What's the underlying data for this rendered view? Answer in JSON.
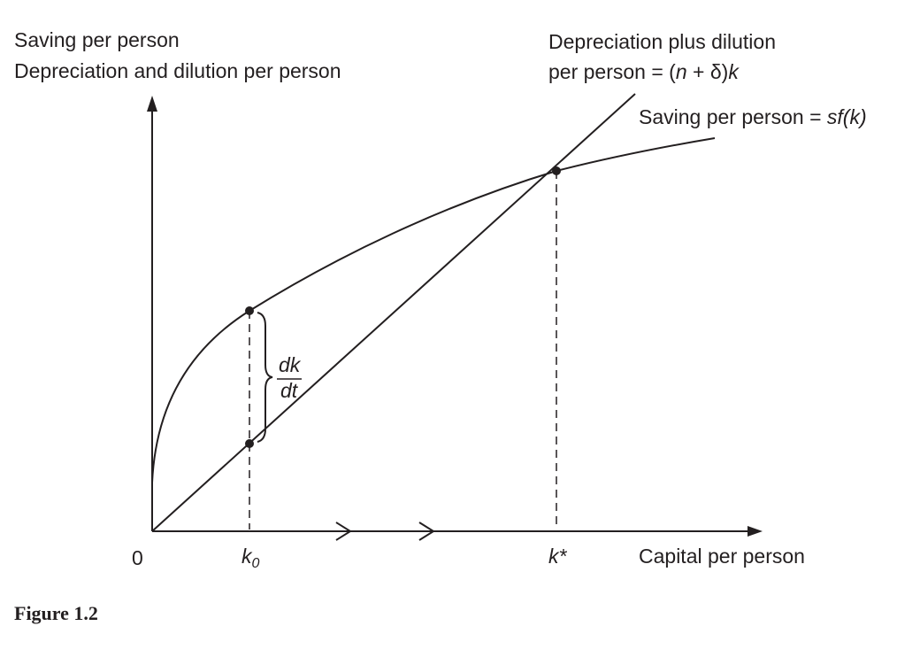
{
  "y_axis_label": {
    "line1": "Saving per person",
    "line2": "Depreciation and dilution per person"
  },
  "x_axis_label": "Capital per person",
  "origin_label": "0",
  "k0_label": {
    "base": "k",
    "sub": "0"
  },
  "kstar_label": "k*",
  "line_label": {
    "line1": "Depreciation plus dilution",
    "line2_prefix": "per person = (",
    "n": "n",
    "plus": " + ",
    "delta": "δ",
    "close": ")",
    "k": "k"
  },
  "curve_label": {
    "prefix": "Saving per person = ",
    "func": "sf(k)"
  },
  "dk_dt": {
    "numerator": "dk",
    "denominator": "dt"
  },
  "caption": "Figure 1.2"
}
